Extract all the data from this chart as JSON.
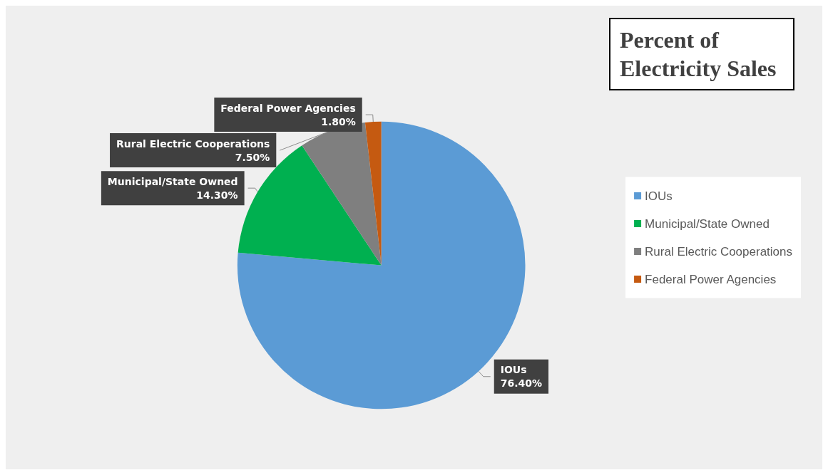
{
  "chart_data": {
    "type": "pie",
    "title": "Percent of Electricity Sales",
    "categories": [
      "IOUs",
      "Municipal/State Owned",
      "Rural Electric Cooperations",
      "Federal Power Agencies"
    ],
    "values": [
      76.4,
      14.3,
      7.5,
      1.8
    ],
    "colors": [
      "#5b9bd5",
      "#00b050",
      "#7f7f7f",
      "#c55a11"
    ],
    "value_labels": [
      "76.40%",
      "14.30%",
      "7.50%",
      "1.80%"
    ],
    "legend": "right"
  }
}
